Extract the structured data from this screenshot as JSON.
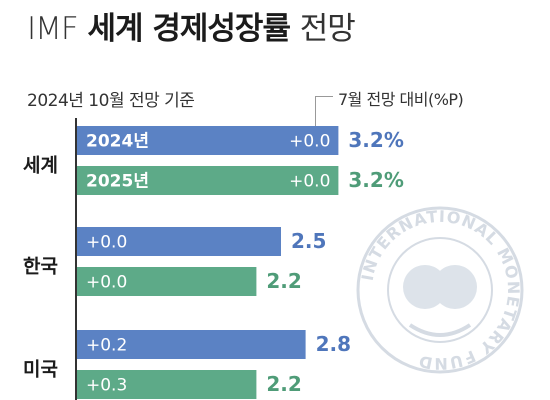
{
  "title": {
    "prefix": "IMF",
    "main": "세계 경제성장률",
    "suffix": "전망"
  },
  "subtitle": "2024년 10월 전망 기준",
  "change_note": "7월 전망 대비(%P)",
  "colors": {
    "y2024": "#5b82c4",
    "y2025": "#5daa88",
    "value2024": "#4f76bb",
    "value2025": "#4f9c78",
    "axis": "#333333",
    "seal": "#d5dbe3"
  },
  "seal_text": "INTERNATIONAL MONETARY FUND",
  "chart_data": {
    "type": "bar",
    "orientation": "horizontal",
    "title": "IMF 세계 경제성장률 전망",
    "subtitle": "2024년 10월 전망 기준",
    "categories": [
      "세계",
      "한국",
      "미국"
    ],
    "series": [
      {
        "name": "2024년",
        "values": [
          3.2,
          2.5,
          2.8
        ],
        "change_labels": [
          "+0.0",
          "+0.0",
          "+0.2"
        ]
      },
      {
        "name": "2025년",
        "values": [
          3.2,
          2.2,
          2.2
        ],
        "change_labels": [
          "+0.0",
          "+0.0",
          "+0.3"
        ]
      }
    ],
    "value_labels": [
      [
        "3.2%",
        "2.5",
        "2.8"
      ],
      [
        "3.2%",
        "2.2",
        "2.2"
      ]
    ],
    "change_unit": "%P",
    "xlim": [
      0,
      4.2
    ],
    "grid": false,
    "legend": "none"
  }
}
